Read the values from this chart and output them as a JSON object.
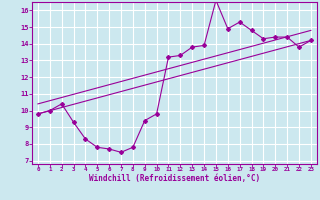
{
  "xlabel": "Windchill (Refroidissement éolien,°C)",
  "background_color": "#cce8ef",
  "line_color": "#990099",
  "grid_color": "#ffffff",
  "xlim": [
    -0.5,
    23.5
  ],
  "ylim": [
    6.8,
    16.5
  ],
  "xticks": [
    0,
    1,
    2,
    3,
    4,
    5,
    6,
    7,
    8,
    9,
    10,
    11,
    12,
    13,
    14,
    15,
    16,
    17,
    18,
    19,
    20,
    21,
    22,
    23
  ],
  "yticks": [
    7,
    8,
    9,
    10,
    11,
    12,
    13,
    14,
    15,
    16
  ],
  "line1_x": [
    0,
    1,
    2,
    3,
    4,
    5,
    6,
    7,
    8,
    9,
    10,
    11,
    12,
    13,
    14,
    15,
    16,
    17,
    18,
    19,
    20,
    21,
    22,
    23
  ],
  "line1_y": [
    9.8,
    10.0,
    10.4,
    9.3,
    8.3,
    7.8,
    7.7,
    7.5,
    7.8,
    9.4,
    9.8,
    13.2,
    13.3,
    13.8,
    13.9,
    16.6,
    14.9,
    15.3,
    14.8,
    14.3,
    14.4,
    14.4,
    13.8,
    14.2
  ],
  "line2_x": [
    0,
    23
  ],
  "line2_y": [
    9.8,
    14.2
  ],
  "line3_x": [
    0,
    23
  ],
  "line3_y": [
    10.4,
    14.8
  ]
}
